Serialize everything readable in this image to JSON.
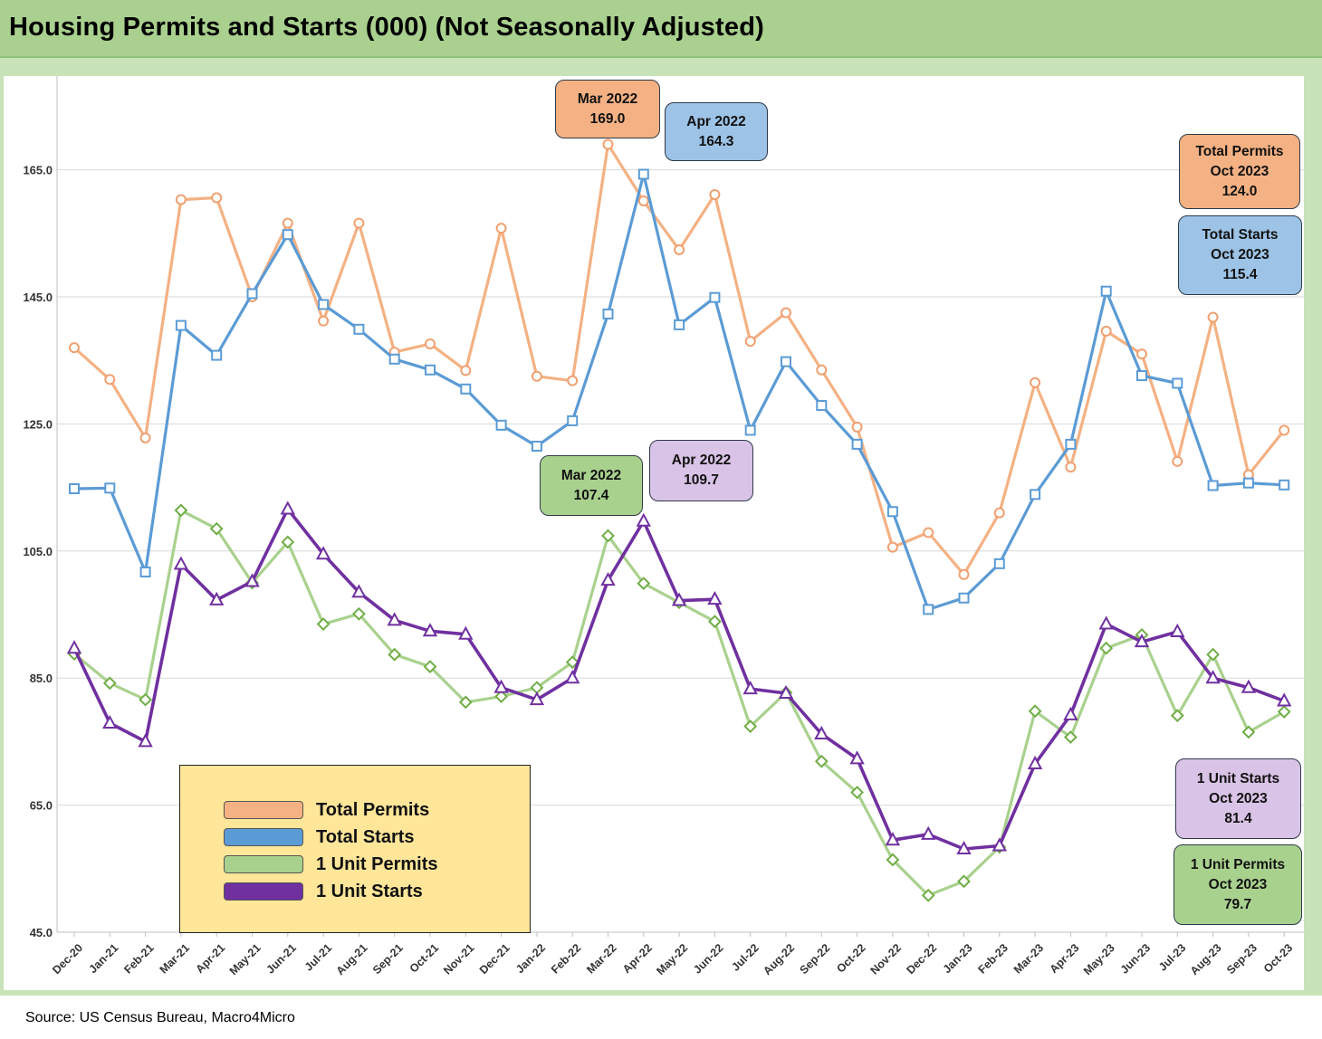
{
  "title": "Housing Permits and Starts (000) (Not Seasonally Adjusted)",
  "source": "Source: US Census Bureau, Macro4Micro",
  "colors": {
    "total_permits": "#f4b183",
    "total_starts": "#5b9bd5",
    "unit1_permits": "#a9d18e",
    "unit1_starts": "#7030a0",
    "total_permits_marker": "#f0a070",
    "unit1_permits_marker": "#70ad47"
  },
  "legend": {
    "total_permits": "Total Permits",
    "total_starts": "Total Starts",
    "unit1_permits": "1 Unit Permits",
    "unit1_starts": "1 Unit Starts"
  },
  "callouts": {
    "tp_peak": {
      "line1": "Mar 2022",
      "line2": "169.0"
    },
    "ts_peak": {
      "line1": "Apr 2022",
      "line2": "164.3"
    },
    "u1p_peak": {
      "line1": "Mar 2022",
      "line2": "107.4"
    },
    "u1s_peak": {
      "line1": "Apr 2022",
      "line2": "109.7"
    },
    "tp_last": {
      "line1": "Total Permits",
      "line2": "Oct 2023",
      "line3": "124.0"
    },
    "ts_last": {
      "line1": "Total Starts",
      "line2": "Oct 2023",
      "line3": "115.4"
    },
    "u1s_last": {
      "line1": "1 Unit Starts",
      "line2": "Oct 2023",
      "line3": "81.4"
    },
    "u1p_last": {
      "line1": "1 Unit Permits",
      "line2": "Oct 2023",
      "line3": "79.7"
    }
  },
  "chart_data": {
    "type": "line",
    "title": "Housing Permits and Starts (000) (Not Seasonally Adjusted)",
    "xlabel": "",
    "ylabel": "",
    "ylim": [
      45,
      180
    ],
    "yticks": [
      "165.0",
      "145.0",
      "125.0",
      "105.0",
      "85.0",
      "65.0",
      "45.0"
    ],
    "grid": true,
    "categories": [
      "Dec-20",
      "Jan-21",
      "Feb-21",
      "Mar-21",
      "Apr-21",
      "May-21",
      "Jun-21",
      "Jul-21",
      "Aug-21",
      "Sep-21",
      "Oct-21",
      "Nov-21",
      "Dec-21",
      "Jan-22",
      "Feb-22",
      "Mar-22",
      "Apr-22",
      "May-22",
      "Jun-22",
      "Jul-22",
      "Aug-22",
      "Sep-22",
      "Oct-22",
      "Nov-22",
      "Dec-22",
      "Jan-23",
      "Feb-23",
      "Mar-23",
      "Apr-23",
      "May-23",
      "Jun-23",
      "Jul-23",
      "Aug-23",
      "Sep-23",
      "Oct-23"
    ],
    "series": [
      {
        "name": "Total Permits",
        "marker": "circle",
        "values": [
          137.0,
          132.0,
          122.8,
          160.3,
          160.6,
          145.0,
          156.6,
          141.2,
          156.6,
          136.3,
          137.6,
          133.4,
          155.8,
          132.5,
          131.8,
          169.0,
          160.1,
          152.4,
          161.1,
          138.0,
          142.5,
          133.5,
          124.5,
          105.6,
          107.9,
          101.3,
          111.0,
          131.5,
          118.2,
          139.6,
          136.0,
          119.1,
          141.8,
          117.0,
          124.0
        ]
      },
      {
        "name": "Total Starts",
        "marker": "square",
        "values": [
          114.8,
          114.9,
          101.7,
          140.5,
          135.8,
          145.5,
          154.8,
          143.8,
          139.9,
          135.2,
          133.5,
          130.5,
          124.8,
          121.5,
          125.5,
          142.3,
          164.3,
          140.6,
          144.9,
          124.0,
          134.8,
          127.9,
          121.8,
          111.2,
          95.8,
          97.6,
          103.0,
          113.9,
          121.8,
          145.9,
          132.6,
          131.4,
          115.3,
          115.7,
          115.4
        ]
      },
      {
        "name": "1 Unit Permits",
        "marker": "diamond",
        "values": [
          88.8,
          84.2,
          81.6,
          111.4,
          108.5,
          100.0,
          106.4,
          93.5,
          95.1,
          88.7,
          86.8,
          81.2,
          82.1,
          83.5,
          87.5,
          107.4,
          99.9,
          96.9,
          93.9,
          77.4,
          82.7,
          71.9,
          67.0,
          56.4,
          50.8,
          53.0,
          58.4,
          79.8,
          75.7,
          89.7,
          91.8,
          79.1,
          88.7,
          76.5,
          79.7
        ]
      },
      {
        "name": "1 Unit Starts",
        "marker": "triangle",
        "values": [
          89.7,
          77.9,
          75.0,
          102.9,
          97.3,
          100.2,
          111.6,
          104.5,
          98.5,
          94.1,
          92.4,
          91.9,
          83.5,
          81.6,
          85.0,
          100.4,
          109.7,
          97.2,
          97.4,
          83.3,
          82.6,
          76.2,
          72.3,
          59.5,
          60.4,
          58.1,
          58.6,
          71.5,
          79.2,
          93.5,
          90.7,
          92.3,
          85.0,
          83.5,
          81.4
        ]
      }
    ]
  }
}
